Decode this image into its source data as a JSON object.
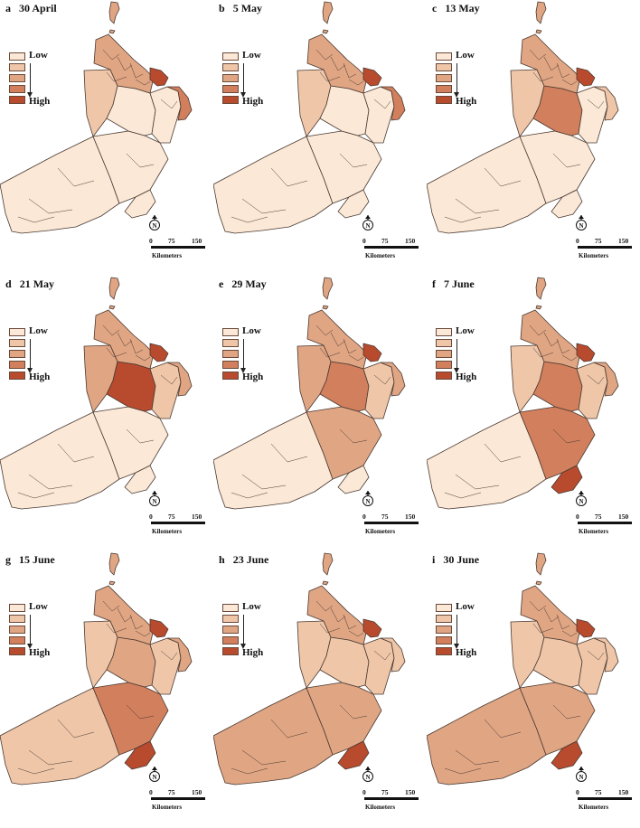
{
  "figure": {
    "legend": {
      "low_label": "Low",
      "high_label": "High"
    },
    "scale": {
      "ticks": [
        "0",
        "75",
        "150"
      ],
      "unit": "Kilometers",
      "north_label": "N"
    },
    "palette": {
      "level1": "#fbe8d6",
      "level2": "#efc6a8",
      "level3": "#e0a583",
      "level4": "#d17f5c",
      "level5": "#b84a2e"
    },
    "outline_color": "#4a3a32",
    "panels": [
      {
        "letter": "a",
        "date": "30 April",
        "levels": {
          "dhofar": 1,
          "wusta": 1,
          "dhahira": 2,
          "dakhiliya": 1,
          "sharqiya": 1,
          "north": 3,
          "muscat": 5,
          "east_coast": 4
        }
      },
      {
        "letter": "b",
        "date": "5 May",
        "levels": {
          "dhofar": 1,
          "wusta": 1,
          "dhahira": 2,
          "dakhiliya": 1,
          "sharqiya": 1,
          "north": 3,
          "muscat": 5,
          "east_coast": 4
        }
      },
      {
        "letter": "c",
        "date": "13 May",
        "levels": {
          "dhofar": 1,
          "wusta": 1,
          "dhahira": 2,
          "dakhiliya": 4,
          "sharqiya": 1,
          "north": 3,
          "muscat": 5,
          "east_coast": 2
        }
      },
      {
        "letter": "d",
        "date": "21 May",
        "levels": {
          "dhofar": 1,
          "wusta": 1,
          "dhahira": 3,
          "dakhiliya": 5,
          "sharqiya": 2,
          "north": 3,
          "muscat": 5,
          "east_coast": 3
        }
      },
      {
        "letter": "e",
        "date": "29 May",
        "levels": {
          "dhofar": 1,
          "wusta": 3,
          "dhahira": 3,
          "dakhiliya": 4,
          "sharqiya": 2,
          "north": 3,
          "muscat": 5,
          "east_coast": 3
        }
      },
      {
        "letter": "f",
        "date": "7 June",
        "levels": {
          "dhofar": 1,
          "wusta": 4,
          "dhahira": 2,
          "dakhiliya": 4,
          "sharqiya": 2,
          "north": 3,
          "muscat": 5,
          "east_coast": 3,
          "salalah": 5
        }
      },
      {
        "letter": "g",
        "date": "15 June",
        "levels": {
          "dhofar": 2,
          "wusta": 4,
          "dhahira": 2,
          "dakhiliya": 3,
          "sharqiya": 2,
          "north": 3,
          "muscat": 5,
          "east_coast": 3,
          "salalah": 5
        }
      },
      {
        "letter": "h",
        "date": "23 June",
        "levels": {
          "dhofar": 3,
          "wusta": 3,
          "dhahira": 2,
          "dakhiliya": 2,
          "sharqiya": 2,
          "north": 3,
          "muscat": 5,
          "east_coast": 2,
          "salalah": 5
        }
      },
      {
        "letter": "i",
        "date": "30 June",
        "levels": {
          "dhofar": 3,
          "wusta": 3,
          "dhahira": 2,
          "dakhiliya": 2,
          "sharqiya": 2,
          "north": 3,
          "muscat": 5,
          "east_coast": 2,
          "salalah": 5
        }
      }
    ]
  }
}
